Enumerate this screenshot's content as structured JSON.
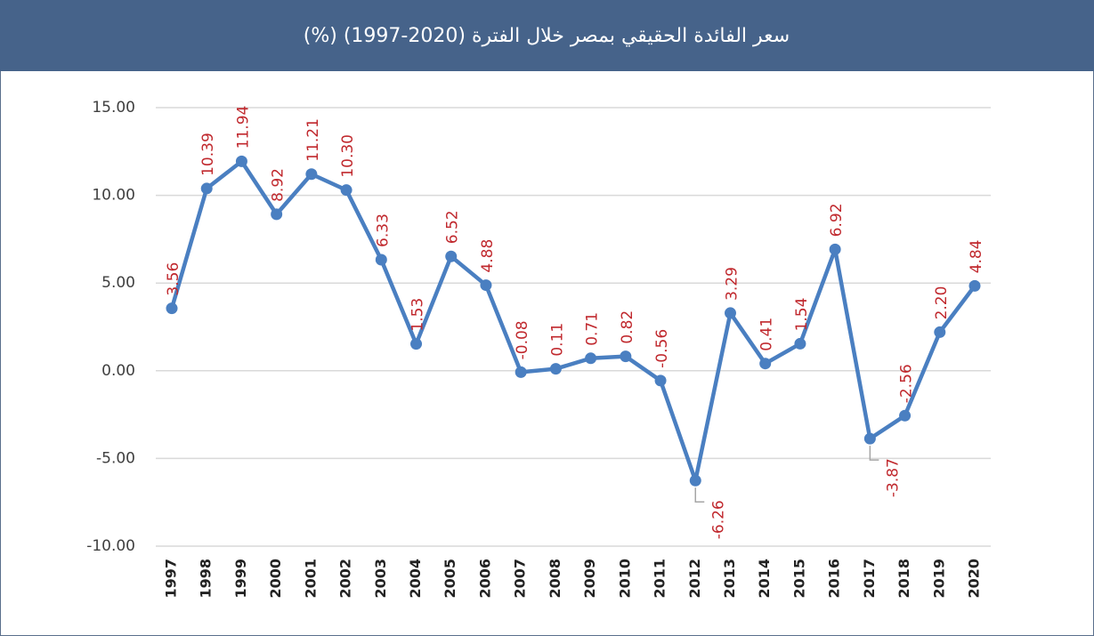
{
  "chart_data": {
    "type": "line",
    "title": "سعر الفائدة الحقيقي بمصر خلال الفترة (2020-1997) (%)",
    "categories": [
      "1997",
      "1998",
      "1999",
      "2000",
      "2001",
      "2002",
      "2003",
      "2004",
      "2005",
      "2006",
      "2007",
      "2008",
      "2009",
      "2010",
      "2011",
      "2012",
      "2013",
      "2014",
      "2015",
      "2016",
      "2017",
      "2018",
      "2019",
      "2020"
    ],
    "series": [
      {
        "name": "سعر الفائدة الحقيقي",
        "color": "#4a7fc1",
        "values": [
          3.56,
          10.39,
          11.94,
          8.92,
          11.21,
          10.3,
          6.33,
          1.53,
          6.52,
          4.88,
          -0.08,
          0.11,
          0.71,
          0.82,
          -0.56,
          -6.26,
          3.29,
          0.41,
          1.54,
          6.92,
          -3.87,
          -2.56,
          2.2,
          4.84
        ],
        "value_labels": [
          "3.56",
          "10.39",
          "11.94",
          "8.92",
          "11.21",
          "10.30",
          "6.33",
          "1.53",
          "6.52",
          "4.88",
          "-0.08",
          "0.11",
          "0.71",
          "0.82",
          "-0.56",
          "-6.26",
          "3.29",
          "0.41",
          "1.54",
          "6.92",
          "-3.87",
          "-2.56",
          "2.20",
          "4.84"
        ]
      }
    ],
    "label_color": "#c0282d",
    "ylim": [
      -10,
      15
    ],
    "yticks": [
      {
        "value": -10,
        "label": "-10.00"
      },
      {
        "value": -5,
        "label": "-5.00"
      },
      {
        "value": 0,
        "label": "0.00"
      },
      {
        "value": 5,
        "label": "5.00"
      },
      {
        "value": 10,
        "label": "10.00"
      },
      {
        "value": 15,
        "label": "15.00"
      }
    ],
    "grid": true
  }
}
